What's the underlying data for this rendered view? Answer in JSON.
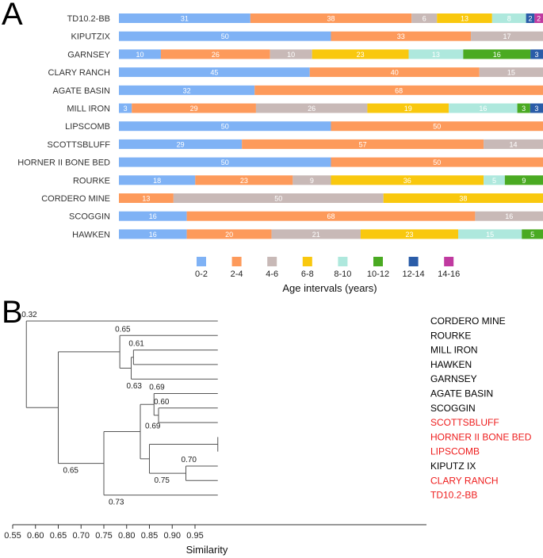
{
  "panels": {
    "a": "A",
    "b": "B"
  },
  "chart_data": [
    {
      "type": "bar",
      "orientation": "horizontal-stacked",
      "xlabel": "Age intervals (years)",
      "categories": [
        "TD10.2-BB",
        "KIPUTZIX",
        "GARNSEY",
        "CLARY RANCH",
        "AGATE BASIN",
        "MILL IRON",
        "LIPSCOMB",
        "SCOTTSBLUFF",
        "HORNER II BONE BED",
        "ROURKE",
        "CORDERO MINE",
        "SCOGGIN",
        "HAWKEN"
      ],
      "series": [
        {
          "name": "0-2",
          "color": "#7fb2f5",
          "values": [
            31,
            50,
            10,
            45,
            32,
            3,
            50,
            29,
            50,
            18,
            0,
            16,
            16
          ]
        },
        {
          "name": "2-4",
          "color": "#fd9a5b",
          "values": [
            38,
            33,
            26,
            40,
            68,
            29,
            50,
            57,
            50,
            23,
            13,
            68,
            20
          ]
        },
        {
          "name": "4-6",
          "color": "#c8b9b7",
          "values": [
            6,
            17,
            10,
            15,
            0,
            26,
            0,
            14,
            0,
            9,
            50,
            16,
            21
          ]
        },
        {
          "name": "6-8",
          "color": "#f9c80e",
          "values": [
            13,
            0,
            23,
            0,
            0,
            19,
            0,
            0,
            0,
            36,
            38,
            0,
            23
          ]
        },
        {
          "name": "8-10",
          "color": "#aee8dd",
          "values": [
            8,
            0,
            13,
            0,
            0,
            16,
            0,
            0,
            0,
            5,
            0,
            0,
            15
          ]
        },
        {
          "name": "10-12",
          "color": "#4aaa22",
          "values": [
            0,
            0,
            16,
            0,
            0,
            3,
            0,
            0,
            0,
            9,
            0,
            0,
            5
          ]
        },
        {
          "name": "12-14",
          "color": "#2a5ca8",
          "values": [
            2,
            0,
            3,
            0,
            0,
            3,
            0,
            0,
            0,
            0,
            0,
            0,
            0
          ]
        },
        {
          "name": "14-16",
          "color": "#c03aa0",
          "values": [
            2,
            0,
            0,
            0,
            0,
            0,
            0,
            0,
            0,
            0,
            0,
            0,
            0
          ]
        }
      ]
    },
    {
      "type": "dendrogram",
      "xlabel": "Similarity",
      "xlim": [
        0.55,
        1.0
      ],
      "xticks": [
        0.55,
        0.6,
        0.65,
        0.7,
        0.75,
        0.8,
        0.85,
        0.9,
        0.95
      ],
      "tick_labels": [
        "0.55",
        "0.60",
        "0.65",
        "0.70",
        "0.75",
        "0.80",
        "0.85",
        "0.90",
        "0.95"
      ],
      "leaves": [
        {
          "name": "CORDERO MINE",
          "color": "#000000"
        },
        {
          "name": "ROURKE",
          "color": "#000000"
        },
        {
          "name": "MILL IRON",
          "color": "#000000"
        },
        {
          "name": "HAWKEN",
          "color": "#000000"
        },
        {
          "name": "GARNSEY",
          "color": "#000000"
        },
        {
          "name": "AGATE BASIN",
          "color": "#000000"
        },
        {
          "name": "SCOGGIN",
          "color": "#000000"
        },
        {
          "name": "SCOTTSBLUFF",
          "color": "#ee1c1c"
        },
        {
          "name": "HORNER II BONE BED",
          "color": "#ee1c1c"
        },
        {
          "name": "LIPSCOMB",
          "color": "#ee1c1c"
        },
        {
          "name": "KIPUTZ IX",
          "color": "#000000"
        },
        {
          "name": "CLARY RANCH",
          "color": "#ee1c1c"
        },
        {
          "name": "TD10.2-BB",
          "color": "#ee1c1c"
        }
      ],
      "merges": [
        {
          "id": "m1",
          "children": [
            "HORNER II BONE BED",
            "LIPSCOMB"
          ],
          "sim": 1.0
        },
        {
          "id": "m2",
          "children": [
            "KIPUTZ IX",
            "CLARY RANCH"
          ],
          "sim": 0.93,
          "label": "0.70",
          "label_pos": "above"
        },
        {
          "id": "m3",
          "children": [
            "m1",
            "m2"
          ],
          "sim": 0.85,
          "label": "0.75",
          "label_pos": "right-below"
        },
        {
          "id": "m4",
          "children": [
            "SCOGGIN",
            "SCOTTSBLUFF"
          ],
          "sim": 0.87,
          "label": "0.60",
          "label_pos": "above"
        },
        {
          "id": "m5",
          "children": [
            "AGATE BASIN",
            "m4"
          ],
          "sim": 0.86,
          "label": "0.69",
          "label_pos": "above"
        },
        {
          "id": "m6",
          "children": [
            "m5",
            "m3"
          ],
          "sim": 0.83,
          "label": "0.69",
          "label_pos": "left"
        },
        {
          "id": "m7",
          "children": [
            "m6",
            "TD10.2-BB"
          ],
          "sim": 0.75,
          "label": "0.73",
          "label_pos": "right-below"
        },
        {
          "id": "m8",
          "children": [
            "MILL IRON",
            "HAWKEN"
          ],
          "sim": 0.815,
          "label": "0.61",
          "label_pos": "above"
        },
        {
          "id": "m9",
          "children": [
            "m8",
            "GARNSEY"
          ],
          "sim": 0.81,
          "label": "0.63",
          "label_pos": "below"
        },
        {
          "id": "m10",
          "children": [
            "ROURKE",
            "m9"
          ],
          "sim": 0.785,
          "label": "0.65",
          "label_pos": "above"
        },
        {
          "id": "m11",
          "children": [
            "m10",
            "m7"
          ],
          "sim": 0.65,
          "label": "0.65",
          "label_pos": "right-below"
        },
        {
          "id": "m12",
          "children": [
            "CORDERO MINE",
            "m11"
          ],
          "sim": 0.58,
          "label": "0.32",
          "label_pos": "above"
        }
      ]
    }
  ]
}
